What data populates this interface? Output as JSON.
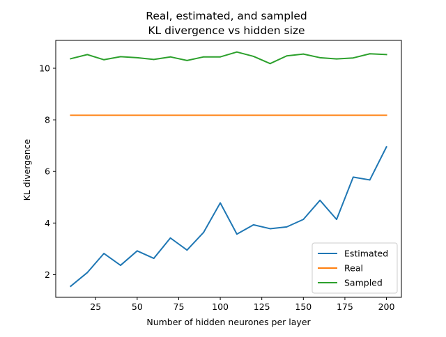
{
  "chart_data": {
    "type": "line",
    "title": "Real, estimated, and sampled\nKL divergence vs hidden size",
    "title_lines": [
      "Real, estimated, and sampled",
      "KL divergence vs hidden size"
    ],
    "xlabel": "Number of hidden neurones per layer",
    "ylabel": "KL divergence",
    "xlim": [
      1,
      209
    ],
    "ylim": [
      1.12,
      11.08
    ],
    "xticks": [
      25,
      50,
      75,
      100,
      125,
      150,
      175,
      200
    ],
    "yticks": [
      2,
      4,
      6,
      8,
      10
    ],
    "grid": false,
    "legend_position": "lower-right",
    "x": [
      10,
      20,
      30,
      40,
      50,
      60,
      70,
      80,
      90,
      100,
      110,
      120,
      130,
      140,
      150,
      160,
      170,
      180,
      190,
      200
    ],
    "series": [
      {
        "name": "Estimated",
        "color": "#1f77b4",
        "values": [
          1.55,
          2.08,
          2.82,
          2.36,
          2.92,
          2.63,
          3.42,
          2.95,
          3.64,
          4.78,
          3.57,
          3.93,
          3.78,
          3.85,
          4.14,
          4.88,
          4.14,
          5.78,
          5.67,
          6.95
        ]
      },
      {
        "name": "Real",
        "color": "#ff7f0e",
        "values": [
          8.18,
          8.18,
          8.18,
          8.18,
          8.18,
          8.18,
          8.18,
          8.18,
          8.18,
          8.18,
          8.18,
          8.18,
          8.18,
          8.18,
          8.18,
          8.18,
          8.18,
          8.18,
          8.18,
          8.18
        ]
      },
      {
        "name": "Sampled",
        "color": "#2ca02c",
        "values": [
          10.37,
          10.53,
          10.33,
          10.45,
          10.41,
          10.34,
          10.44,
          10.3,
          10.44,
          10.44,
          10.63,
          10.46,
          10.18,
          10.48,
          10.55,
          10.41,
          10.36,
          10.4,
          10.56,
          10.53
        ]
      }
    ]
  }
}
